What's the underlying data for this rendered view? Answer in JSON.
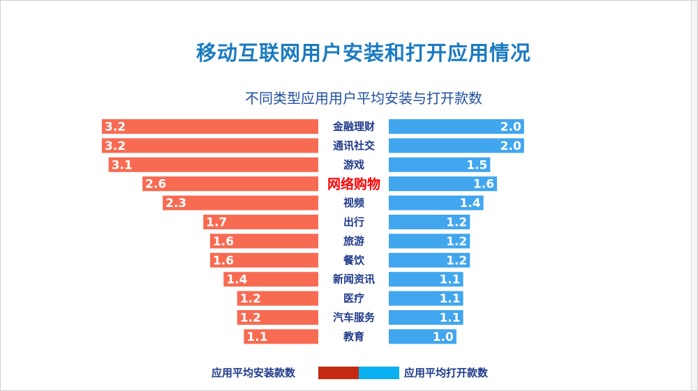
{
  "title": "移动互联网用户安装和打开应用情况",
  "chart_data": {
    "type": "bar",
    "title": "不同类型应用用户平均安装与打开款数",
    "orientation": "horizontal-diverging",
    "categories": [
      "金融理财",
      "通讯社交",
      "游戏",
      "网络购物",
      "视频",
      "出行",
      "旅游",
      "餐饮",
      "新闻资讯",
      "医疗",
      "汽车服务",
      "教育"
    ],
    "highlighted_category": "网络购物",
    "series": [
      {
        "name": "应用平均安装款数",
        "color": "#f76b52",
        "legend_color": "#c42a10",
        "side": "left",
        "values": [
          3.2,
          3.2,
          3.1,
          2.6,
          2.3,
          1.7,
          1.6,
          1.6,
          1.4,
          1.2,
          1.2,
          1.1
        ]
      },
      {
        "name": "应用平均打开款数",
        "color": "#41a6ee",
        "legend_color": "#0ab0ef",
        "side": "right",
        "values": [
          2.0,
          2.0,
          1.5,
          1.6,
          1.4,
          1.2,
          1.2,
          1.2,
          1.1,
          1.1,
          1.1,
          1.0
        ]
      }
    ],
    "legend_position": "bottom",
    "grid": false
  }
}
